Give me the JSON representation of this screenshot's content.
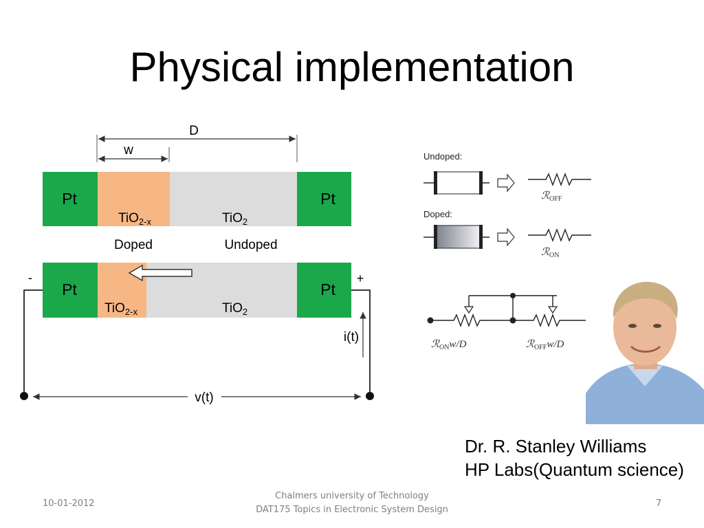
{
  "slide": {
    "title": "Physical implementation",
    "caption_line1": "Dr. R. Stanley Williams",
    "caption_line2": "HP Labs(Quantum science)"
  },
  "diagram": {
    "label_D": "D",
    "label_w": "w",
    "label_pt": "Pt",
    "label_tio2x_base": "TiO",
    "label_tio2x_sub": "2-x",
    "label_tio2_base": "TiO",
    "label_tio2_sub": "2",
    "label_doped": "Doped",
    "label_undoped": "Undoped",
    "label_minus": "-",
    "label_plus": "+",
    "label_current": "i(t)",
    "label_voltage": "v(t)"
  },
  "legend": {
    "undoped_label": "Undoped:",
    "doped_label": "Doped:",
    "r_symbol": "ℛ",
    "r_off_sub": "OFF",
    "r_on_sub": "ON",
    "circuit_left_sub": "ON",
    "circuit_left_suffix": "w/D",
    "circuit_right_sub": "OFF",
    "circuit_right_suffix": "w/D"
  },
  "footer": {
    "date": "10-01-2012",
    "org_line1": "Chalmers university of Technology",
    "org_line2": "DAT175 Topics in Electronic System Design",
    "page": "7"
  },
  "colors": {
    "pt_green": "#1aa84b",
    "doped_orange": "#f6b784",
    "undoped_gray": "#dcdcdc"
  }
}
